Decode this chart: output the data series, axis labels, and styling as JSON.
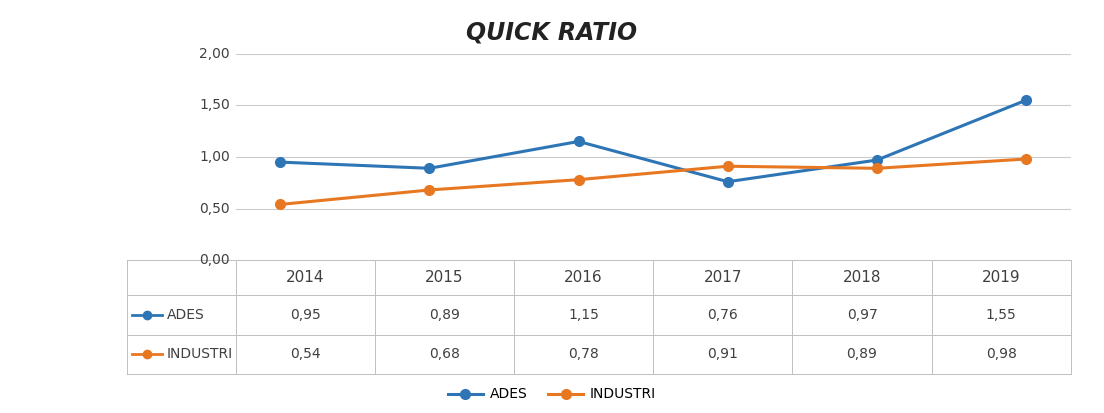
{
  "title": "QUICK RATIO",
  "years": [
    2014,
    2015,
    2016,
    2017,
    2018,
    2019
  ],
  "ades": [
    0.95,
    0.89,
    1.15,
    0.76,
    0.97,
    1.55
  ],
  "industri": [
    0.54,
    0.68,
    0.78,
    0.91,
    0.89,
    0.98
  ],
  "ades_color": "#2E75B6",
  "industri_color": "#E87722",
  "ylim": [
    0.0,
    2.0
  ],
  "yticks": [
    0.0,
    0.5,
    1.0,
    1.5,
    2.0
  ],
  "ytick_labels": [
    "0,00",
    "0,50",
    "1,00",
    "1,50",
    "2,00"
  ],
  "background_color": "#FFFFFF",
  "table_row1_label": "ADES",
  "table_row2_label": "INDUSTRI",
  "legend_ades": "ADES",
  "legend_industri": "INDUSTRI",
  "title_fontsize": 17,
  "tick_fontsize": 10,
  "table_fontsize": 10,
  "year_fontsize": 11,
  "line_width": 2.2,
  "marker_size": 7,
  "grid_color": "#CCCCCC",
  "border_color": "#C0C0C0",
  "text_color": "#404040"
}
